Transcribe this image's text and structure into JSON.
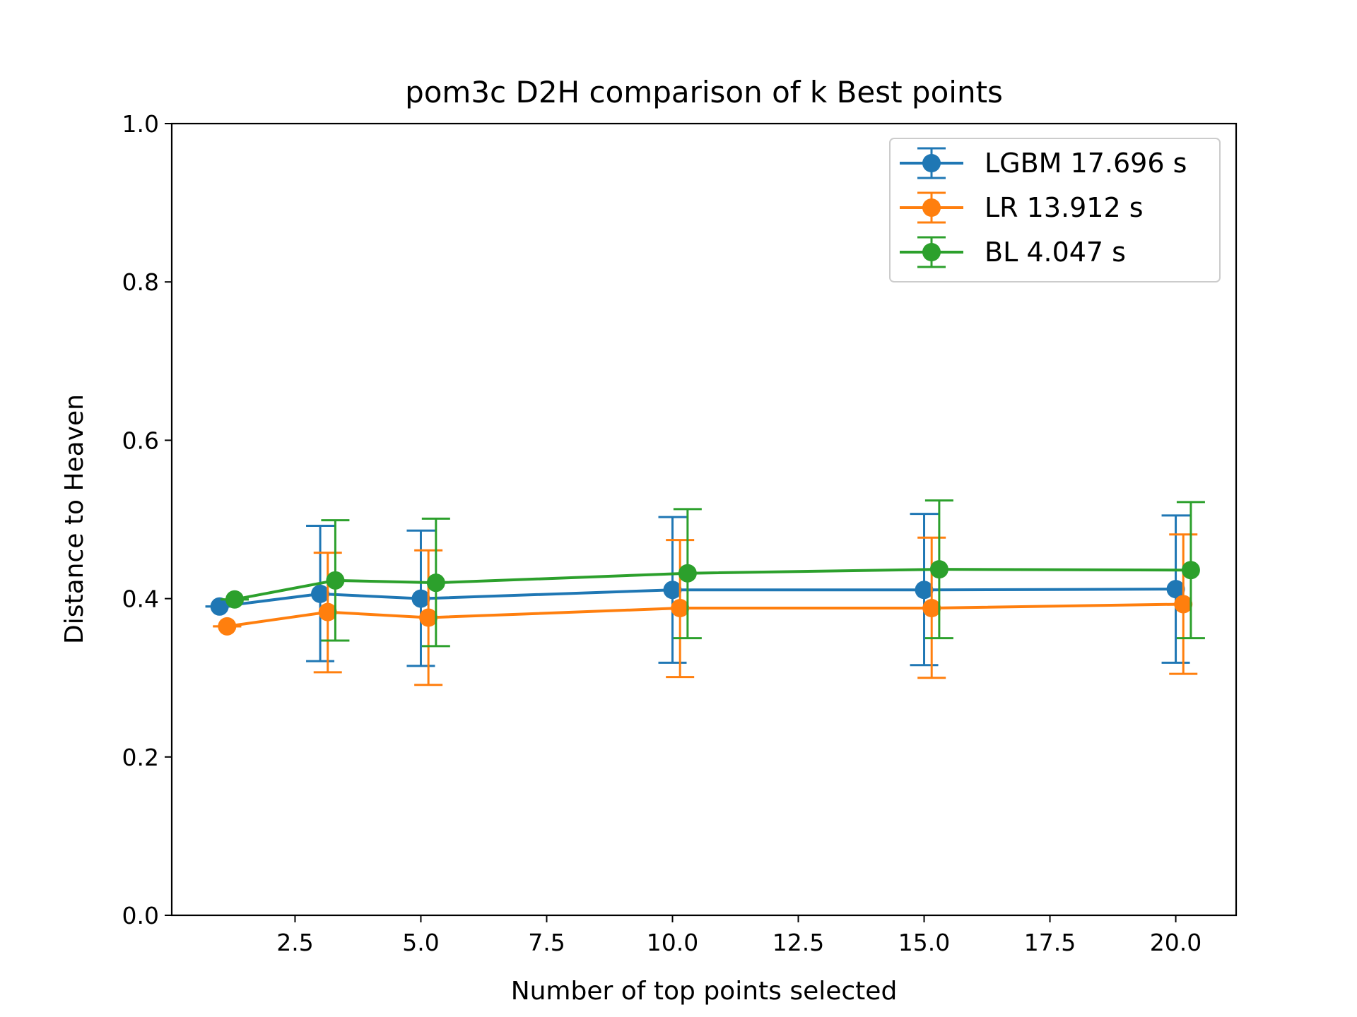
{
  "chart_data": {
    "type": "line",
    "title": "pom3c D2H comparison of k Best points",
    "xlabel": "Number of top points selected",
    "ylabel": "Distance to Heaven",
    "xlim": [
      0.05,
      21.2
    ],
    "ylim": [
      0.0,
      1.0
    ],
    "xticks": [
      2.5,
      5.0,
      7.5,
      10.0,
      12.5,
      15.0,
      17.5,
      20.0
    ],
    "xtick_labels": [
      "2.5",
      "5.0",
      "7.5",
      "10.0",
      "12.5",
      "15.0",
      "17.5",
      "20.0"
    ],
    "yticks": [
      0.0,
      0.2,
      0.4,
      0.6,
      0.8,
      1.0
    ],
    "ytick_labels": [
      "0.0",
      "0.2",
      "0.4",
      "0.6",
      "0.8",
      "1.0"
    ],
    "grid": false,
    "legend_position": "top-right",
    "error_bars": true,
    "series": [
      {
        "name": "LGBM 17.696 s",
        "color": "#1f77b4",
        "x": [
          1.0,
          3.0,
          5.0,
          10.0,
          15.0,
          20.0
        ],
        "y": [
          0.39,
          0.406,
          0.4,
          0.411,
          0.411,
          0.412
        ],
        "yerr_low": [
          0.39,
          0.321,
          0.315,
          0.319,
          0.316,
          0.319
        ],
        "yerr_high": [
          0.39,
          0.492,
          0.486,
          0.503,
          0.507,
          0.505
        ]
      },
      {
        "name": "LR 13.912 s",
        "color": "#ff7f0e",
        "x": [
          1.15,
          3.15,
          5.15,
          10.15,
          15.15,
          20.15
        ],
        "y": [
          0.365,
          0.383,
          0.376,
          0.388,
          0.388,
          0.393
        ],
        "yerr_low": [
          0.365,
          0.307,
          0.291,
          0.301,
          0.3,
          0.305
        ],
        "yerr_high": [
          0.365,
          0.458,
          0.461,
          0.474,
          0.477,
          0.481
        ]
      },
      {
        "name": "BL 4.047 s",
        "color": "#2ca02c",
        "x": [
          1.3,
          3.3,
          5.3,
          10.3,
          15.3,
          20.3
        ],
        "y": [
          0.399,
          0.423,
          0.42,
          0.432,
          0.437,
          0.436
        ],
        "yerr_low": [
          0.399,
          0.347,
          0.34,
          0.35,
          0.35,
          0.35
        ],
        "yerr_high": [
          0.399,
          0.499,
          0.501,
          0.513,
          0.524,
          0.522
        ]
      }
    ]
  }
}
